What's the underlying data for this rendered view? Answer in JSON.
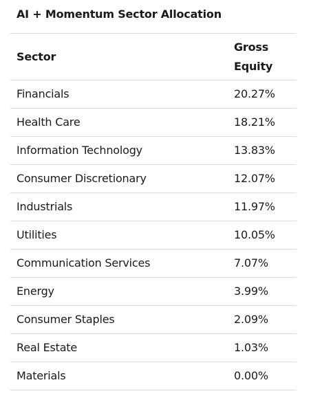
{
  "title": "AI + Momentum Sector Allocation",
  "table": {
    "headers": [
      "Sector",
      "Gross Equity"
    ],
    "rows": [
      {
        "sector": "Financials",
        "gross": "20.27%"
      },
      {
        "sector": "Health Care",
        "gross": "18.21%"
      },
      {
        "sector": "Information Technology",
        "gross": "13.83%"
      },
      {
        "sector": "Consumer Discretionary",
        "gross": "12.07%"
      },
      {
        "sector": "Industrials",
        "gross": "11.97%"
      },
      {
        "sector": "Utilities",
        "gross": "10.05%"
      },
      {
        "sector": "Communication Services",
        "gross": "7.07%"
      },
      {
        "sector": "Energy",
        "gross": "3.99%"
      },
      {
        "sector": "Consumer Staples",
        "gross": "2.09%"
      },
      {
        "sector": "Real Estate",
        "gross": "1.03%"
      },
      {
        "sector": "Materials",
        "gross": "0.00%"
      }
    ]
  }
}
